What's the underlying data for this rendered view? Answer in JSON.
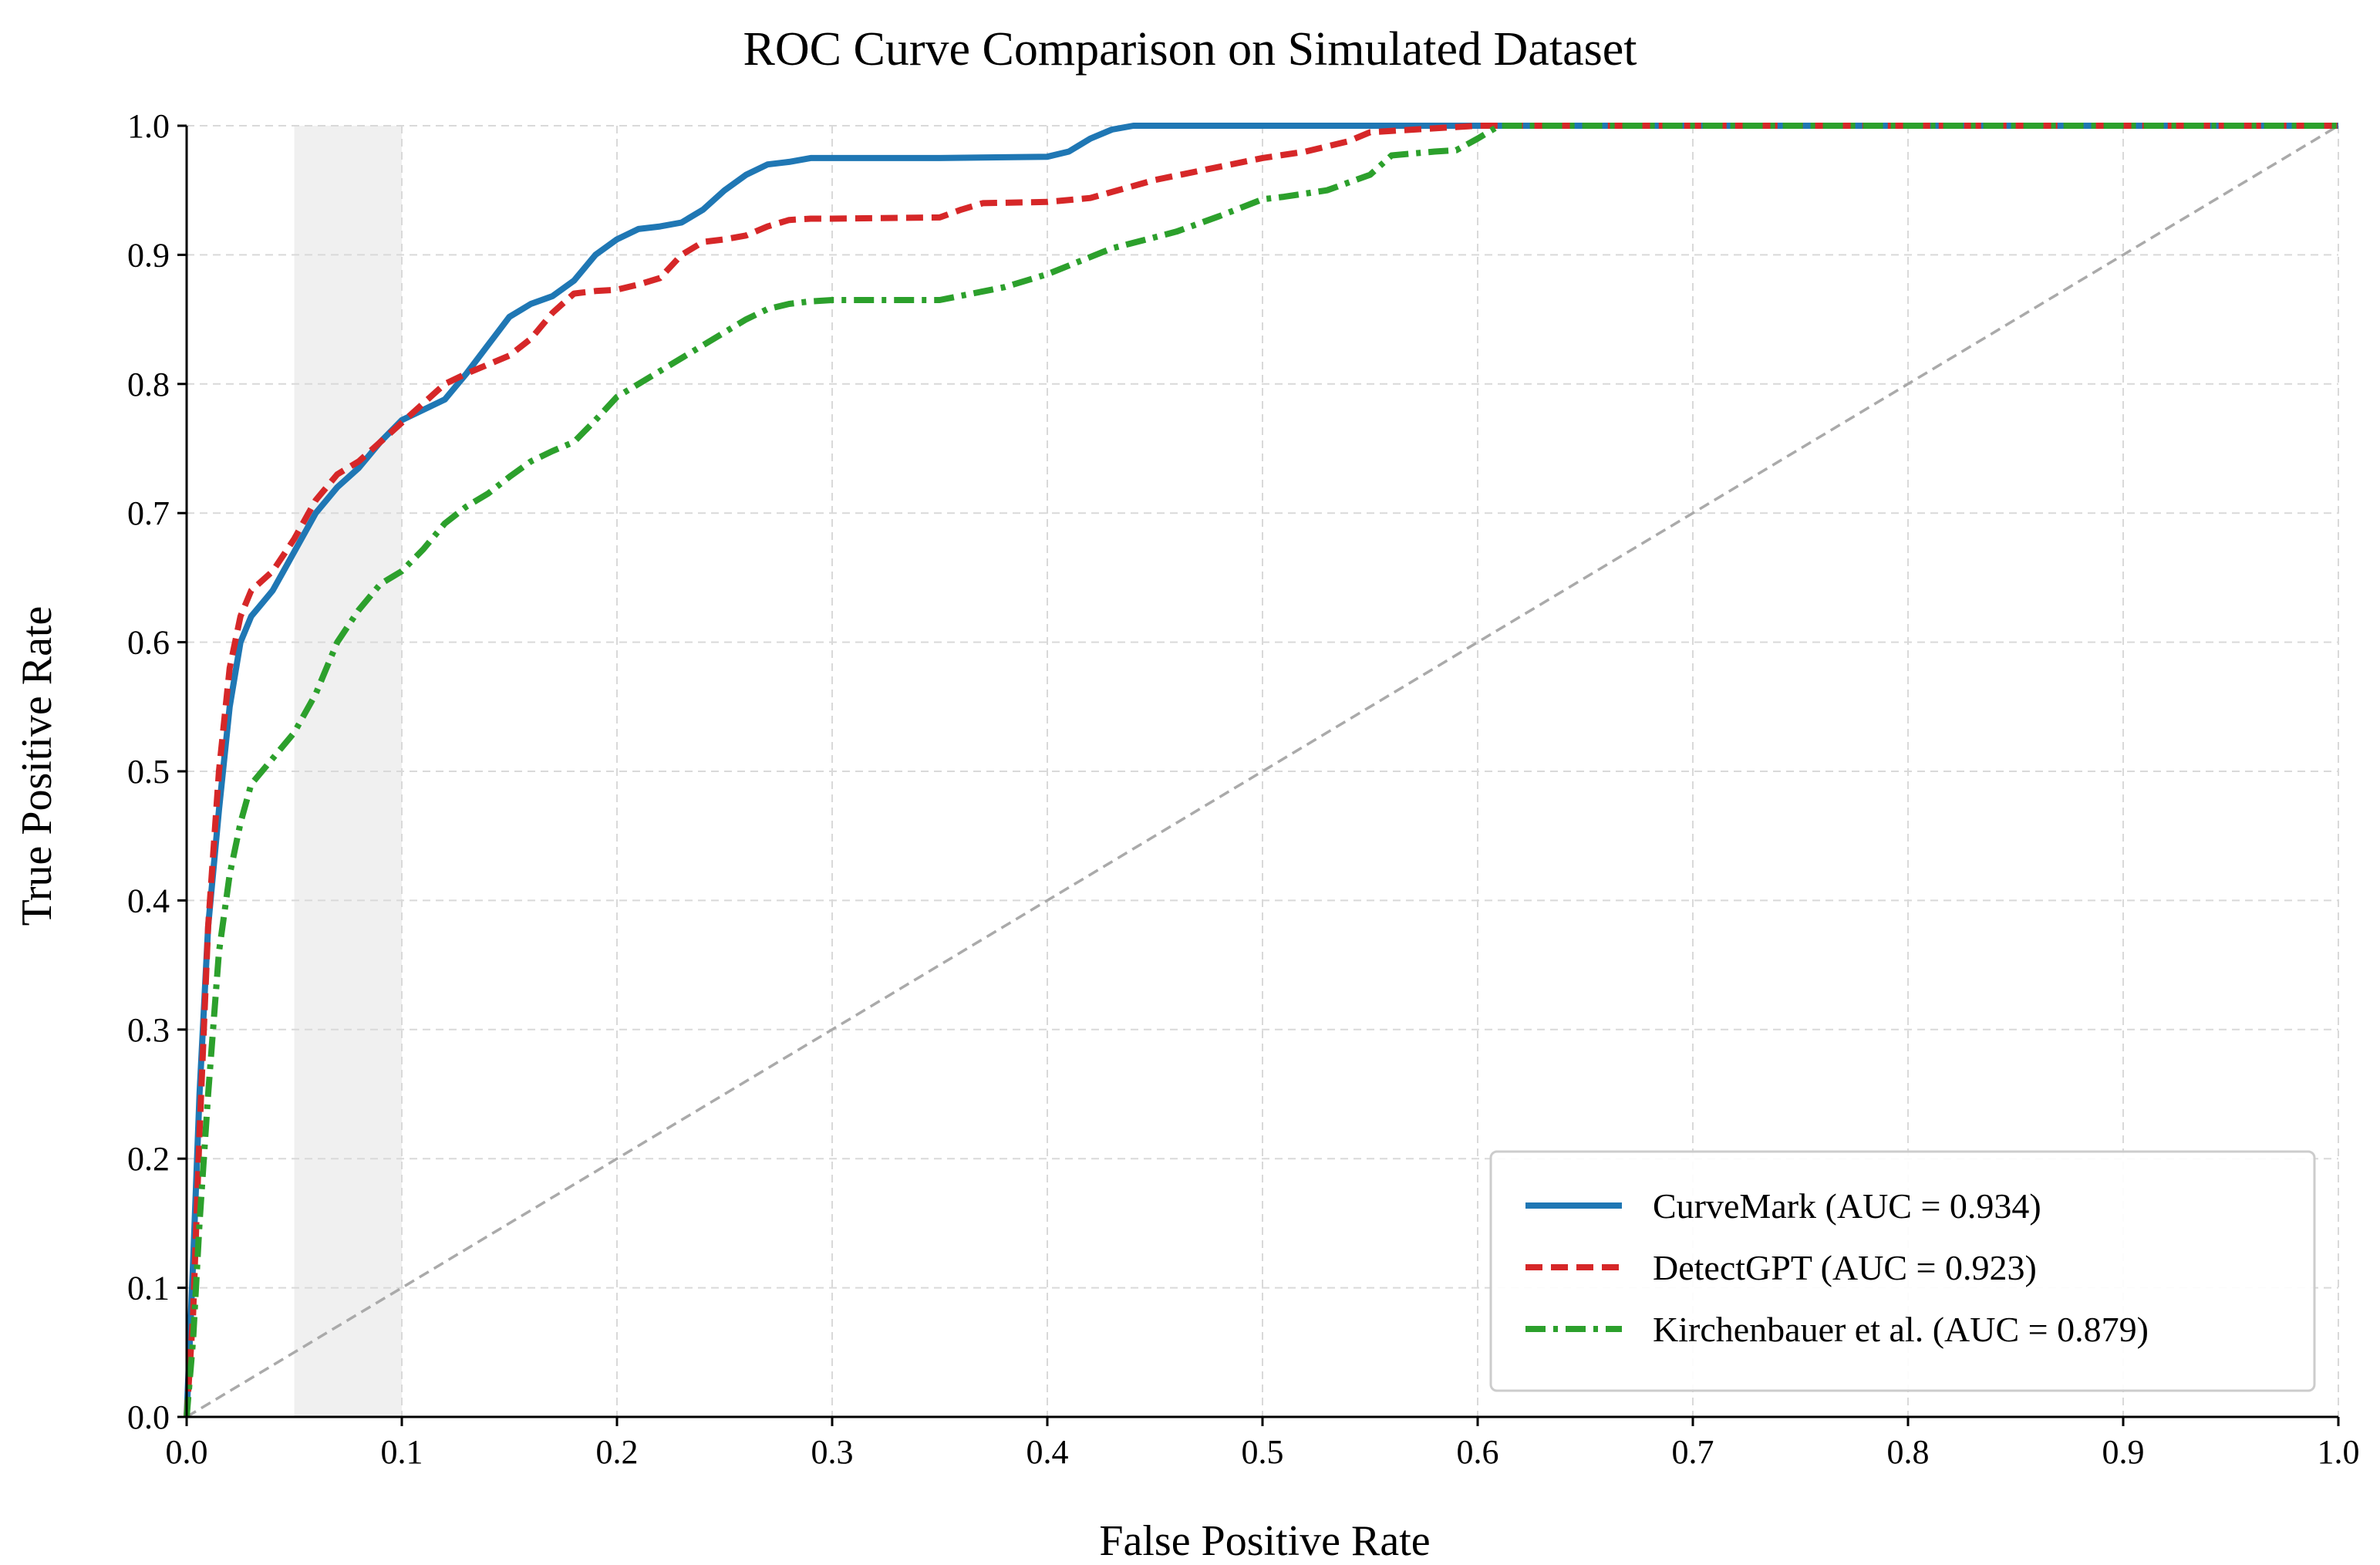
{
  "chart_data": {
    "type": "line",
    "title": "ROC Curve Comparison on Simulated Dataset",
    "xlabel": "False Positive Rate",
    "ylabel": "True Positive Rate",
    "xlim": [
      0,
      1
    ],
    "ylim": [
      0,
      1
    ],
    "xticks": [
      "0.0",
      "0.1",
      "0.2",
      "0.3",
      "0.4",
      "0.5",
      "0.6",
      "0.7",
      "0.8",
      "0.9",
      "1.0"
    ],
    "yticks": [
      "0.0",
      "0.1",
      "0.2",
      "0.3",
      "0.4",
      "0.5",
      "0.6",
      "0.7",
      "0.8",
      "0.9",
      "1.0"
    ],
    "grid": true,
    "legend_position": "bottom-right",
    "highlight_region": {
      "x": [
        0.05,
        0.1
      ],
      "color": "#f0f0f0"
    },
    "reference_line": {
      "name": "random",
      "x": [
        0,
        1
      ],
      "y": [
        0,
        1
      ],
      "color": "#aaaaaa",
      "style": "dashed"
    },
    "series": [
      {
        "name": "CurveMark (AUC = 0.934)",
        "color": "#1f77b4",
        "style": "solid",
        "x": [
          0,
          0.003,
          0.006,
          0.01,
          0.015,
          0.02,
          0.025,
          0.03,
          0.035,
          0.04,
          0.045,
          0.05,
          0.06,
          0.07,
          0.08,
          0.09,
          0.1,
          0.11,
          0.12,
          0.13,
          0.14,
          0.15,
          0.16,
          0.17,
          0.18,
          0.19,
          0.2,
          0.21,
          0.22,
          0.23,
          0.24,
          0.25,
          0.26,
          0.27,
          0.28,
          0.29,
          0.3,
          0.35,
          0.4,
          0.41,
          0.42,
          0.43,
          0.44,
          0.5,
          0.6,
          0.7,
          0.8,
          0.9,
          1.0
        ],
        "y": [
          0,
          0.12,
          0.25,
          0.38,
          0.47,
          0.55,
          0.6,
          0.62,
          0.63,
          0.64,
          0.655,
          0.67,
          0.7,
          0.72,
          0.735,
          0.755,
          0.772,
          0.78,
          0.788,
          0.808,
          0.83,
          0.852,
          0.862,
          0.868,
          0.88,
          0.9,
          0.912,
          0.92,
          0.922,
          0.925,
          0.935,
          0.95,
          0.962,
          0.97,
          0.972,
          0.975,
          0.975,
          0.975,
          0.976,
          0.98,
          0.99,
          0.997,
          1.0,
          1.0,
          1.0,
          1.0,
          1.0,
          1.0,
          1.0
        ]
      },
      {
        "name": "DetectGPT (AUC = 0.923)",
        "color": "#d62728",
        "style": "dashed",
        "x": [
          0,
          0.003,
          0.006,
          0.01,
          0.015,
          0.02,
          0.025,
          0.03,
          0.04,
          0.05,
          0.06,
          0.07,
          0.08,
          0.09,
          0.1,
          0.11,
          0.12,
          0.13,
          0.14,
          0.15,
          0.16,
          0.17,
          0.18,
          0.19,
          0.2,
          0.21,
          0.22,
          0.23,
          0.24,
          0.25,
          0.26,
          0.27,
          0.28,
          0.29,
          0.3,
          0.35,
          0.36,
          0.37,
          0.4,
          0.42,
          0.45,
          0.5,
          0.52,
          0.54,
          0.55,
          0.6,
          0.7,
          0.8,
          0.9,
          1.0
        ],
        "y": [
          0,
          0.08,
          0.22,
          0.38,
          0.5,
          0.58,
          0.62,
          0.64,
          0.655,
          0.68,
          0.71,
          0.73,
          0.74,
          0.755,
          0.77,
          0.785,
          0.8,
          0.808,
          0.815,
          0.822,
          0.835,
          0.855,
          0.87,
          0.872,
          0.873,
          0.877,
          0.882,
          0.9,
          0.91,
          0.912,
          0.915,
          0.922,
          0.927,
          0.928,
          0.928,
          0.929,
          0.935,
          0.94,
          0.941,
          0.944,
          0.958,
          0.975,
          0.98,
          0.988,
          0.995,
          1.0,
          1.0,
          1.0,
          1.0,
          1.0
        ]
      },
      {
        "name": "Kirchenbauer et al. (AUC = 0.879)",
        "color": "#2ca02c",
        "style": "dashdot",
        "x": [
          0,
          0.003,
          0.006,
          0.01,
          0.015,
          0.02,
          0.025,
          0.03,
          0.04,
          0.05,
          0.06,
          0.07,
          0.08,
          0.09,
          0.1,
          0.11,
          0.12,
          0.13,
          0.14,
          0.15,
          0.16,
          0.17,
          0.18,
          0.19,
          0.2,
          0.21,
          0.22,
          0.23,
          0.24,
          0.25,
          0.26,
          0.27,
          0.28,
          0.29,
          0.3,
          0.31,
          0.32,
          0.35,
          0.38,
          0.4,
          0.43,
          0.46,
          0.48,
          0.5,
          0.51,
          0.53,
          0.55,
          0.56,
          0.58,
          0.59,
          0.6,
          0.61,
          0.7,
          0.8,
          0.9,
          1.0
        ],
        "y": [
          0,
          0.06,
          0.15,
          0.25,
          0.36,
          0.42,
          0.46,
          0.49,
          0.51,
          0.53,
          0.56,
          0.6,
          0.625,
          0.645,
          0.655,
          0.672,
          0.692,
          0.705,
          0.715,
          0.728,
          0.74,
          0.748,
          0.755,
          0.772,
          0.79,
          0.8,
          0.81,
          0.82,
          0.83,
          0.84,
          0.85,
          0.858,
          0.862,
          0.864,
          0.865,
          0.865,
          0.865,
          0.865,
          0.875,
          0.885,
          0.905,
          0.918,
          0.93,
          0.943,
          0.945,
          0.95,
          0.962,
          0.977,
          0.98,
          0.981,
          0.99,
          1.0,
          1.0,
          1.0,
          1.0,
          1.0
        ]
      }
    ]
  }
}
